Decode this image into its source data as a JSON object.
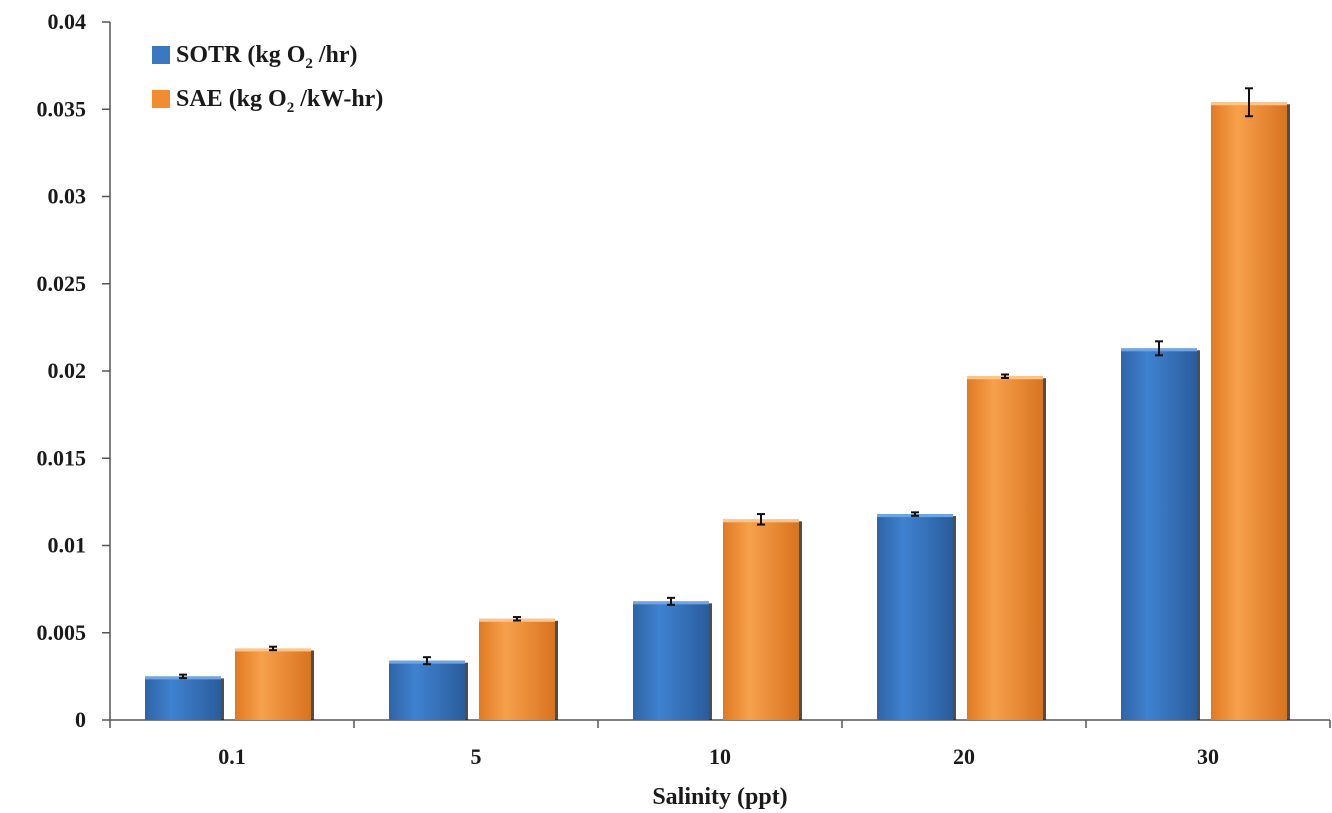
{
  "chart_data": {
    "type": "bar",
    "title": "",
    "xlabel": "Salinity (ppt)",
    "ylabel": "",
    "categories": [
      "0.1",
      "5",
      "10",
      "20",
      "30"
    ],
    "ylim": [
      0,
      0.04
    ],
    "yticks": [
      "0",
      "0.005",
      "0.01",
      "0.015",
      "0.02",
      "0.025",
      "0.03",
      "0.035",
      "0.04"
    ],
    "yticks_values": [
      0,
      0.005,
      0.01,
      0.015,
      0.02,
      0.025,
      0.03,
      0.035,
      0.04
    ],
    "grid": false,
    "legend_position": "top-left",
    "series": [
      {
        "name_parts": [
          "SOTR (kg O",
          "2",
          " /hr)"
        ],
        "color": "#3a78c2",
        "values": [
          0.0025,
          0.0034,
          0.0068,
          0.0118,
          0.0213
        ],
        "errors": [
          0.0001,
          0.0002,
          0.0002,
          0.0001,
          0.0004
        ]
      },
      {
        "name_parts": [
          "SAE (kg O",
          "2",
          " /kW-hr)"
        ],
        "color": "#f28c2f",
        "values": [
          0.0041,
          0.0058,
          0.0115,
          0.0197,
          0.0354
        ],
        "errors": [
          0.0001,
          0.0001,
          0.0003,
          0.0001,
          0.0008
        ]
      }
    ]
  }
}
